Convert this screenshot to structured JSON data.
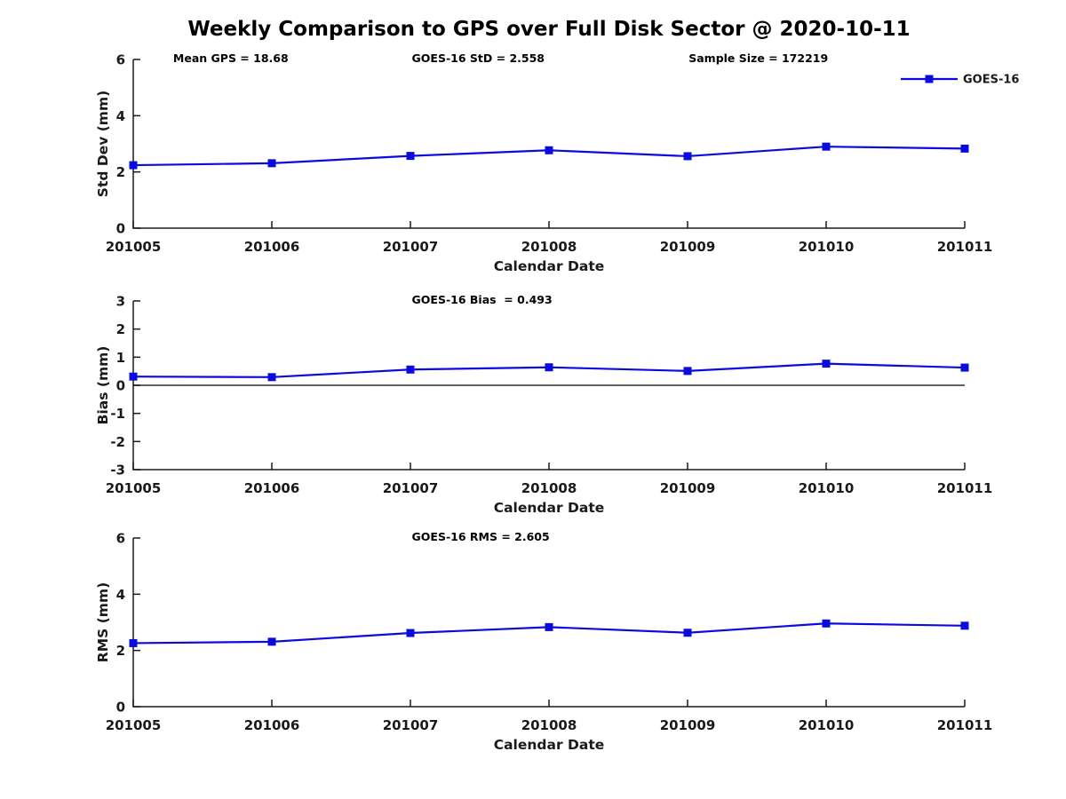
{
  "figure": {
    "title": "Weekly Comparison to GPS over Full Disk Sector @ 2020-10-11",
    "background_color": "#ffffff",
    "line_color": "#0b0be0",
    "axis_color": "#1a1a1a",
    "text_color": "#1a1a1a",
    "marker_shape": "square"
  },
  "chart_data": [
    {
      "type": "line",
      "title": "",
      "ylabel": "Std Dev (mm)",
      "xlabel": "Calendar Date",
      "ylim": [
        0,
        6
      ],
      "yticks": [
        0,
        2,
        4,
        6
      ],
      "grid": false,
      "zero_line": false,
      "categories": [
        "201005",
        "201006",
        "201007",
        "201008",
        "201009",
        "201010",
        "201011"
      ],
      "series": [
        {
          "name": "GOES-16",
          "values": [
            2.24,
            2.31,
            2.57,
            2.77,
            2.56,
            2.9,
            2.83
          ]
        }
      ],
      "annotations": [
        {
          "text": "Mean GPS = 18.68",
          "pos": 0.048
        },
        {
          "text": "GOES-16 StD = 2.558",
          "pos": 0.335
        },
        {
          "text": "Sample Size = 172219",
          "pos": 0.668
        }
      ],
      "legend": {
        "show": true,
        "label": "GOES-16",
        "position": "top-right"
      }
    },
    {
      "type": "line",
      "title": "",
      "ylabel": "Bias (mm)",
      "xlabel": "Calendar Date",
      "ylim": [
        -3,
        3
      ],
      "yticks": [
        -3,
        -2,
        -1,
        0,
        1,
        2,
        3
      ],
      "grid": false,
      "zero_line": true,
      "categories": [
        "201005",
        "201006",
        "201007",
        "201008",
        "201009",
        "201010",
        "201011"
      ],
      "series": [
        {
          "name": "GOES-16",
          "values": [
            0.31,
            0.29,
            0.56,
            0.64,
            0.51,
            0.77,
            0.63
          ]
        }
      ],
      "annotations": [
        {
          "text": "GOES-16 Bias  = 0.493",
          "pos": 0.335
        }
      ],
      "legend": {
        "show": false,
        "label": "GOES-16",
        "position": "top-right"
      }
    },
    {
      "type": "line",
      "title": "",
      "ylabel": "RMS (mm)",
      "xlabel": "Calendar Date",
      "ylim": [
        0,
        6
      ],
      "yticks": [
        0,
        2,
        4,
        6
      ],
      "grid": false,
      "zero_line": false,
      "categories": [
        "201005",
        "201006",
        "201007",
        "201008",
        "201009",
        "201010",
        "201011"
      ],
      "series": [
        {
          "name": "GOES-16",
          "values": [
            2.26,
            2.31,
            2.62,
            2.83,
            2.63,
            2.96,
            2.88
          ]
        }
      ],
      "annotations": [
        {
          "text": "GOES-16 RMS = 2.605",
          "pos": 0.335
        }
      ],
      "legend": {
        "show": false,
        "label": "GOES-16",
        "position": "top-right"
      }
    }
  ]
}
